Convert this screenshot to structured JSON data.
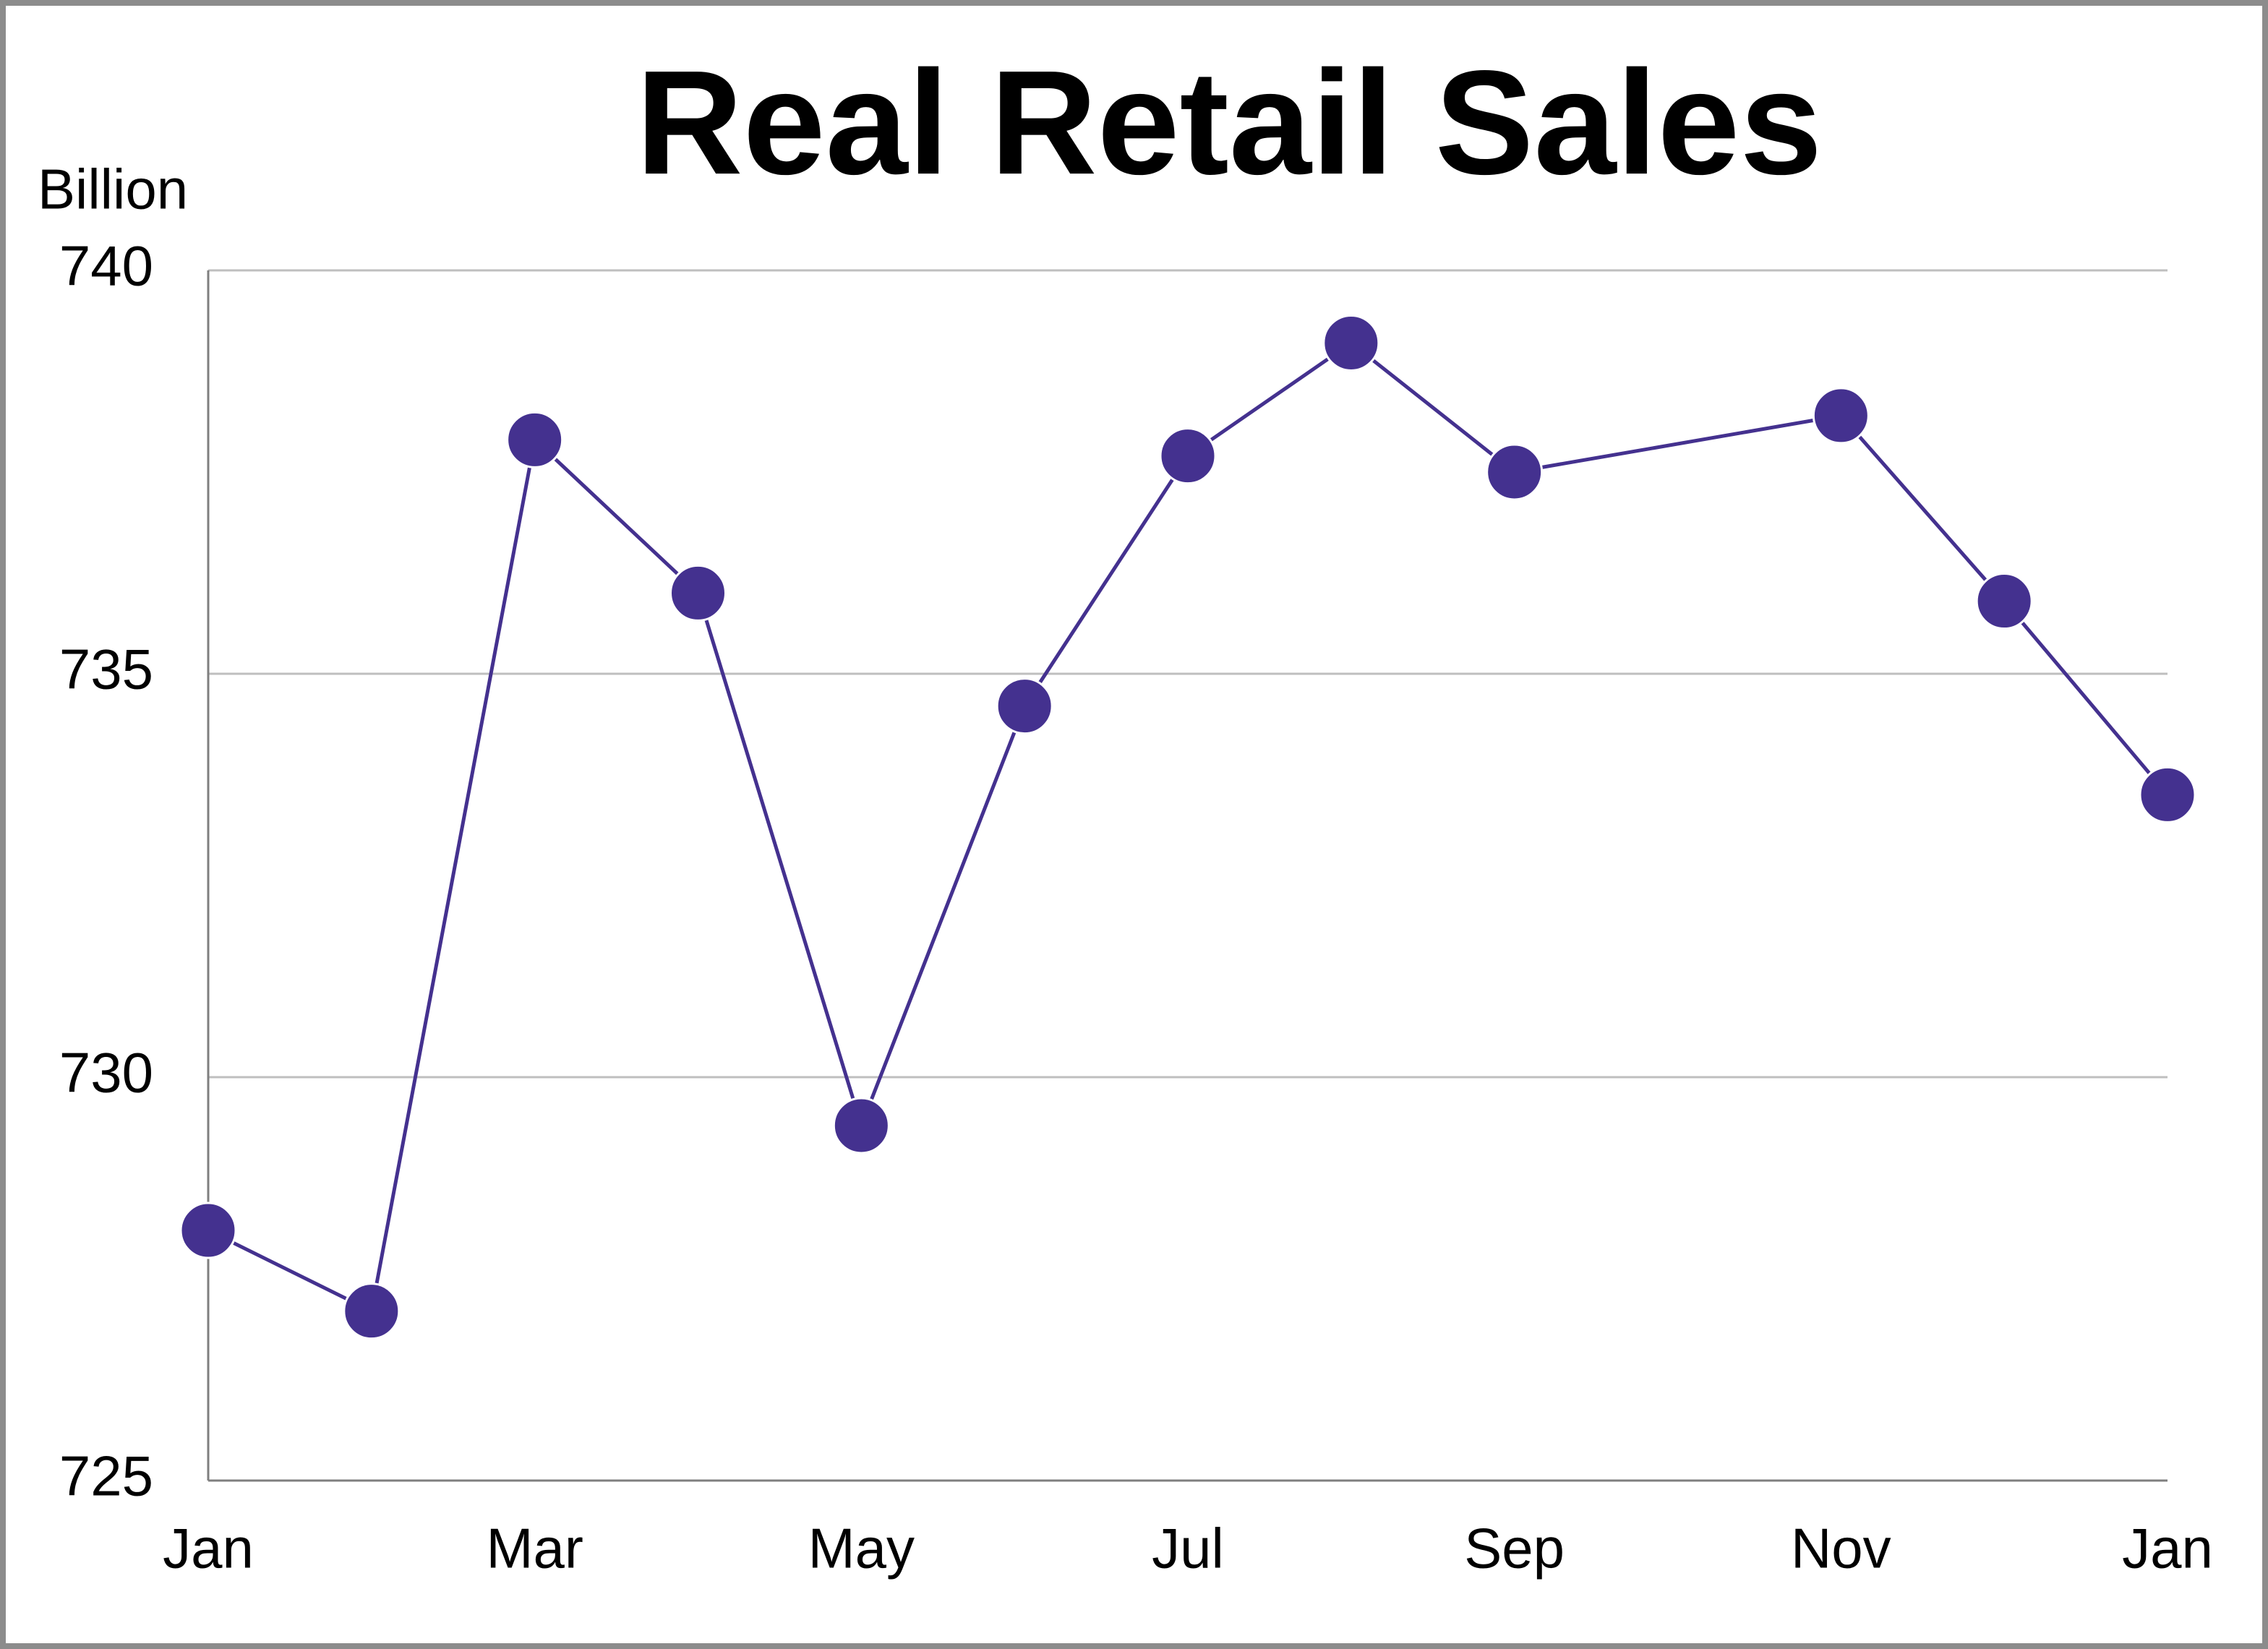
{
  "chart_data": {
    "type": "line",
    "title": "Real Retail Sales",
    "y_axis_label": "Billion",
    "categories": [
      "Jan",
      null,
      "Mar",
      null,
      "May",
      null,
      "Jul",
      null,
      "Sep",
      null,
      "Nov",
      null,
      "Jan"
    ],
    "series": [
      {
        "name": "Real Retail Sales",
        "color": "#44318f",
        "values": [
          728.1,
          727.1,
          737.9,
          736.0,
          729.4,
          734.6,
          737.7,
          739.1,
          737.5,
          null,
          738.2,
          735.9,
          733.5
        ]
      }
    ],
    "connect_gaps": true,
    "ylim": [
      725,
      740
    ],
    "yticks": [
      725,
      730,
      735,
      740
    ],
    "grid": true
  }
}
